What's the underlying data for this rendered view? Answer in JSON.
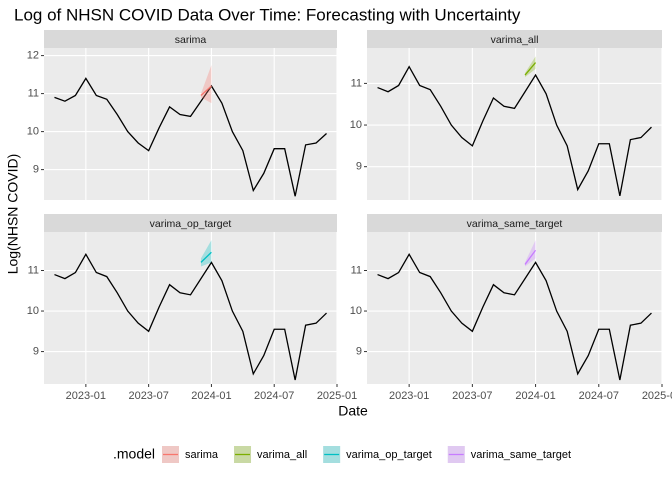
{
  "title": "Log of NHSN COVID Data Over Time: Forecasting with Uncertainty",
  "x_label": "Date",
  "y_label": "Log(NHSN COVID)",
  "legend_title": ".model",
  "chart_data": [
    {
      "type": "line",
      "facet": "sarima",
      "xlim": [
        "2022-09",
        "2025-01"
      ],
      "xticks": [
        "2023-01",
        "2023-07",
        "2024-01",
        "2024-07",
        "2025-01"
      ],
      "ylim": [
        8.2,
        12.2
      ],
      "yticks": [
        9,
        10,
        11,
        12
      ],
      "grid": true,
      "series": [
        {
          "color": "#000000",
          "x": [
            "2022-10",
            "2022-11",
            "2022-12",
            "2023-01",
            "2023-02",
            "2023-03",
            "2023-04",
            "2023-05",
            "2023-06",
            "2023-07",
            "2023-08",
            "2023-09",
            "2023-10",
            "2023-11",
            "2023-12",
            "2024-01",
            "2024-02",
            "2024-03",
            "2024-04",
            "2024-05",
            "2024-06",
            "2024-07",
            "2024-08",
            "2024-09",
            "2024-10",
            "2024-11",
            "2024-12"
          ],
          "values": [
            10.9,
            10.8,
            10.95,
            11.4,
            10.95,
            10.85,
            10.45,
            10.0,
            9.7,
            9.5,
            10.1,
            10.65,
            10.45,
            10.4,
            10.8,
            11.2,
            10.75,
            10.0,
            9.5,
            8.45,
            8.9,
            9.55,
            9.55,
            8.3,
            9.65,
            9.7,
            9.95
          ]
        },
        {
          "name": "sarima",
          "color": "#F8766D",
          "x": [
            "2023-12",
            "2024-01"
          ],
          "values": [
            10.95,
            11.2
          ],
          "lower": [
            10.9,
            10.75
          ],
          "upper": [
            11.0,
            11.75
          ]
        }
      ]
    },
    {
      "type": "line",
      "facet": "varima_all",
      "xlim": [
        "2022-09",
        "2025-01"
      ],
      "xticks": [
        "2023-01",
        "2023-07",
        "2024-01",
        "2024-07",
        "2025-01"
      ],
      "ylim": [
        8.2,
        11.85
      ],
      "yticks": [
        9,
        10,
        11
      ],
      "grid": true,
      "series": [
        {
          "color": "#000000",
          "x": [
            "2022-10",
            "2022-11",
            "2022-12",
            "2023-01",
            "2023-02",
            "2023-03",
            "2023-04",
            "2023-05",
            "2023-06",
            "2023-07",
            "2023-08",
            "2023-09",
            "2023-10",
            "2023-11",
            "2023-12",
            "2024-01",
            "2024-02",
            "2024-03",
            "2024-04",
            "2024-05",
            "2024-06",
            "2024-07",
            "2024-08",
            "2024-09",
            "2024-10",
            "2024-11",
            "2024-12"
          ],
          "values": [
            10.9,
            10.8,
            10.95,
            11.4,
            10.95,
            10.85,
            10.45,
            10.0,
            9.7,
            9.5,
            10.1,
            10.65,
            10.45,
            10.4,
            10.8,
            11.2,
            10.75,
            10.0,
            9.5,
            8.45,
            8.9,
            9.55,
            9.55,
            8.3,
            9.65,
            9.7,
            9.95
          ]
        },
        {
          "name": "varima_all",
          "color": "#7CAE00",
          "x": [
            "2023-12",
            "2024-01"
          ],
          "values": [
            11.2,
            11.5
          ],
          "lower": [
            11.15,
            11.35
          ],
          "upper": [
            11.25,
            11.65
          ]
        }
      ]
    },
    {
      "type": "line",
      "facet": "varima_op_target",
      "xlim": [
        "2022-09",
        "2025-01"
      ],
      "xticks": [
        "2023-01",
        "2023-07",
        "2024-01",
        "2024-07",
        "2025-01"
      ],
      "ylim": [
        8.2,
        11.95
      ],
      "yticks": [
        9,
        10,
        11
      ],
      "grid": true,
      "series": [
        {
          "color": "#000000",
          "x": [
            "2022-10",
            "2022-11",
            "2022-12",
            "2023-01",
            "2023-02",
            "2023-03",
            "2023-04",
            "2023-05",
            "2023-06",
            "2023-07",
            "2023-08",
            "2023-09",
            "2023-10",
            "2023-11",
            "2023-12",
            "2024-01",
            "2024-02",
            "2024-03",
            "2024-04",
            "2024-05",
            "2024-06",
            "2024-07",
            "2024-08",
            "2024-09",
            "2024-10",
            "2024-11",
            "2024-12"
          ],
          "values": [
            10.9,
            10.8,
            10.95,
            11.4,
            10.95,
            10.85,
            10.45,
            10.0,
            9.7,
            9.5,
            10.1,
            10.65,
            10.45,
            10.4,
            10.8,
            11.2,
            10.75,
            10.0,
            9.5,
            8.45,
            8.9,
            9.55,
            9.55,
            8.3,
            9.65,
            9.7,
            9.95
          ]
        },
        {
          "name": "varima_op_target",
          "color": "#00BFC4",
          "x": [
            "2023-12",
            "2024-01"
          ],
          "values": [
            11.2,
            11.45
          ],
          "lower": [
            11.1,
            11.2
          ],
          "upper": [
            11.3,
            11.75
          ]
        }
      ]
    },
    {
      "type": "line",
      "facet": "varima_same_target",
      "xlim": [
        "2022-09",
        "2025-01"
      ],
      "xticks": [
        "2023-01",
        "2023-07",
        "2024-01",
        "2024-07",
        "2025-01"
      ],
      "ylim": [
        8.2,
        11.95
      ],
      "yticks": [
        9,
        10,
        11
      ],
      "grid": true,
      "series": [
        {
          "color": "#000000",
          "x": [
            "2022-10",
            "2022-11",
            "2022-12",
            "2023-01",
            "2023-02",
            "2023-03",
            "2023-04",
            "2023-05",
            "2023-06",
            "2023-07",
            "2023-08",
            "2023-09",
            "2023-10",
            "2023-11",
            "2023-12",
            "2024-01",
            "2024-02",
            "2024-03",
            "2024-04",
            "2024-05",
            "2024-06",
            "2024-07",
            "2024-08",
            "2024-09",
            "2024-10",
            "2024-11",
            "2024-12"
          ],
          "values": [
            10.9,
            10.8,
            10.95,
            11.4,
            10.95,
            10.85,
            10.45,
            10.0,
            9.7,
            9.5,
            10.1,
            10.65,
            10.45,
            10.4,
            10.8,
            11.2,
            10.75,
            10.0,
            9.5,
            8.45,
            8.9,
            9.55,
            9.55,
            8.3,
            9.65,
            9.7,
            9.95
          ]
        },
        {
          "name": "varima_same_target",
          "color": "#C77CFF",
          "x": [
            "2023-12",
            "2024-01"
          ],
          "values": [
            11.15,
            11.5
          ],
          "lower": [
            11.1,
            11.3
          ],
          "upper": [
            11.2,
            11.75
          ]
        }
      ]
    }
  ]
}
